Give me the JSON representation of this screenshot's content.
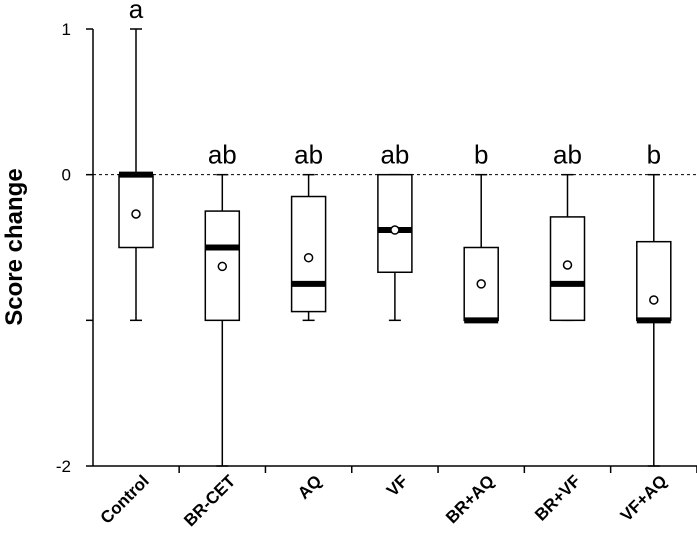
{
  "chart_data": {
    "type": "box",
    "ylabel": "Score change",
    "ylim": [
      -2,
      1
    ],
    "yticks": [
      1,
      0,
      -2
    ],
    "reference_line": 0,
    "categories": [
      "Control",
      "BR-CET",
      "AQ",
      "VF",
      "BR+AQ",
      "BR+VF",
      "VF+AQ"
    ],
    "boxes": [
      {
        "category": "Control",
        "min": -1,
        "q1": -0.5,
        "median": 0,
        "q3": 0,
        "max": 1,
        "mean": -0.27,
        "letter": "a"
      },
      {
        "category": "BR-CET",
        "min": -2,
        "q1": -1,
        "median": -0.5,
        "q3": -0.25,
        "max": 0,
        "mean": -0.63,
        "letter": "ab"
      },
      {
        "category": "AQ",
        "min": -1,
        "q1": -0.94,
        "median": -0.75,
        "q3": -0.15,
        "max": 0,
        "mean": -0.57,
        "letter": "ab"
      },
      {
        "category": "VF",
        "min": -1,
        "q1": -0.67,
        "median": -0.38,
        "q3": 0,
        "max": 0,
        "mean": -0.38,
        "letter": "ab"
      },
      {
        "category": "BR+AQ",
        "min": -1,
        "q1": -1,
        "median": -1,
        "q3": -0.5,
        "max": 0,
        "mean": -0.75,
        "letter": "b"
      },
      {
        "category": "BR+VF",
        "min": -1,
        "q1": -1,
        "median": -0.75,
        "q3": -0.29,
        "max": 0,
        "mean": -0.62,
        "letter": "ab"
      },
      {
        "category": "VF+AQ",
        "min": -2,
        "q1": -1,
        "median": -1,
        "q3": -0.46,
        "max": 0,
        "mean": -0.86,
        "letter": "b"
      }
    ],
    "grid": false,
    "legend": "none"
  }
}
